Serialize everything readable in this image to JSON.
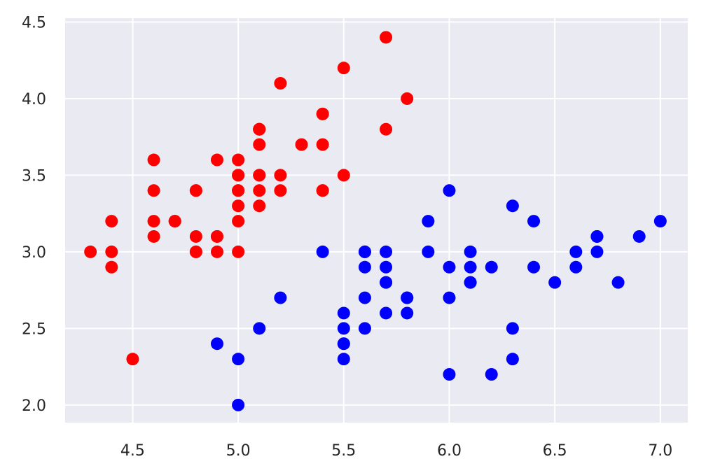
{
  "chart_data": {
    "type": "scatter",
    "title": "",
    "xlabel": "",
    "ylabel": "",
    "xlim": [
      4.18,
      7.13
    ],
    "ylim": [
      1.885,
      4.525
    ],
    "x_ticks": [
      4.5,
      5.0,
      5.5,
      6.0,
      6.5,
      7.0
    ],
    "x_tick_labels": [
      "4.5",
      "5.0",
      "5.5",
      "6.0",
      "6.5",
      "7.0"
    ],
    "y_ticks": [
      2.0,
      2.5,
      3.0,
      3.5,
      4.0,
      4.5
    ],
    "y_tick_labels": [
      "2.0",
      "2.5",
      "3.0",
      "3.5",
      "4.0",
      "4.5"
    ],
    "grid": true,
    "background": "#EAEAF2",
    "series": [
      {
        "color": "#FF0000",
        "points": [
          [
            5.1,
            3.5
          ],
          [
            4.9,
            3.0
          ],
          [
            4.7,
            3.2
          ],
          [
            4.6,
            3.1
          ],
          [
            5.0,
            3.6
          ],
          [
            5.4,
            3.9
          ],
          [
            4.6,
            3.4
          ],
          [
            5.0,
            3.4
          ],
          [
            4.4,
            2.9
          ],
          [
            4.9,
            3.1
          ],
          [
            5.4,
            3.7
          ],
          [
            4.8,
            3.4
          ],
          [
            4.8,
            3.0
          ],
          [
            4.3,
            3.0
          ],
          [
            5.8,
            4.0
          ],
          [
            5.7,
            4.4
          ],
          [
            5.4,
            3.9
          ],
          [
            5.1,
            3.5
          ],
          [
            5.7,
            3.8
          ],
          [
            5.1,
            3.8
          ],
          [
            5.4,
            3.4
          ],
          [
            5.1,
            3.7
          ],
          [
            4.6,
            3.6
          ],
          [
            5.1,
            3.3
          ],
          [
            4.8,
            3.4
          ],
          [
            5.0,
            3.0
          ],
          [
            5.0,
            3.4
          ],
          [
            5.2,
            3.5
          ],
          [
            5.2,
            3.4
          ],
          [
            4.7,
            3.2
          ],
          [
            4.8,
            3.1
          ],
          [
            5.4,
            3.4
          ],
          [
            5.2,
            4.1
          ],
          [
            5.5,
            4.2
          ],
          [
            4.9,
            3.1
          ],
          [
            5.0,
            3.2
          ],
          [
            5.5,
            3.5
          ],
          [
            4.9,
            3.6
          ],
          [
            4.4,
            3.0
          ],
          [
            5.1,
            3.4
          ],
          [
            5.0,
            3.5
          ],
          [
            4.5,
            2.3
          ],
          [
            4.4,
            3.2
          ],
          [
            5.0,
            3.5
          ],
          [
            5.1,
            3.8
          ],
          [
            4.8,
            3.0
          ],
          [
            5.1,
            3.8
          ],
          [
            4.6,
            3.2
          ],
          [
            5.3,
            3.7
          ],
          [
            5.0,
            3.3
          ]
        ]
      },
      {
        "color": "#0000FF",
        "points": [
          [
            7.0,
            3.2
          ],
          [
            6.4,
            3.2
          ],
          [
            6.9,
            3.1
          ],
          [
            5.5,
            2.3
          ],
          [
            6.5,
            2.8
          ],
          [
            5.7,
            2.8
          ],
          [
            6.3,
            3.3
          ],
          [
            4.9,
            2.4
          ],
          [
            6.6,
            2.9
          ],
          [
            5.2,
            2.7
          ],
          [
            5.0,
            2.0
          ],
          [
            5.9,
            3.0
          ],
          [
            6.0,
            2.2
          ],
          [
            6.1,
            2.9
          ],
          [
            5.6,
            2.9
          ],
          [
            6.7,
            3.1
          ],
          [
            5.6,
            3.0
          ],
          [
            5.8,
            2.7
          ],
          [
            6.2,
            2.2
          ],
          [
            5.6,
            2.5
          ],
          [
            5.9,
            3.2
          ],
          [
            6.1,
            2.8
          ],
          [
            6.3,
            2.5
          ],
          [
            6.1,
            2.8
          ],
          [
            6.4,
            2.9
          ],
          [
            6.6,
            3.0
          ],
          [
            6.8,
            2.8
          ],
          [
            6.7,
            3.0
          ],
          [
            6.0,
            2.9
          ],
          [
            5.7,
            2.6
          ],
          [
            5.5,
            2.4
          ],
          [
            5.5,
            2.4
          ],
          [
            5.8,
            2.7
          ],
          [
            6.0,
            2.7
          ],
          [
            5.4,
            3.0
          ],
          [
            6.0,
            3.4
          ],
          [
            6.7,
            3.1
          ],
          [
            6.3,
            2.3
          ],
          [
            5.6,
            3.0
          ],
          [
            5.5,
            2.5
          ],
          [
            5.5,
            2.6
          ],
          [
            6.1,
            3.0
          ],
          [
            5.8,
            2.6
          ],
          [
            5.0,
            2.3
          ],
          [
            5.6,
            2.7
          ],
          [
            5.7,
            3.0
          ],
          [
            5.7,
            2.9
          ],
          [
            6.2,
            2.9
          ],
          [
            5.1,
            2.5
          ],
          [
            5.7,
            2.8
          ]
        ]
      }
    ]
  }
}
